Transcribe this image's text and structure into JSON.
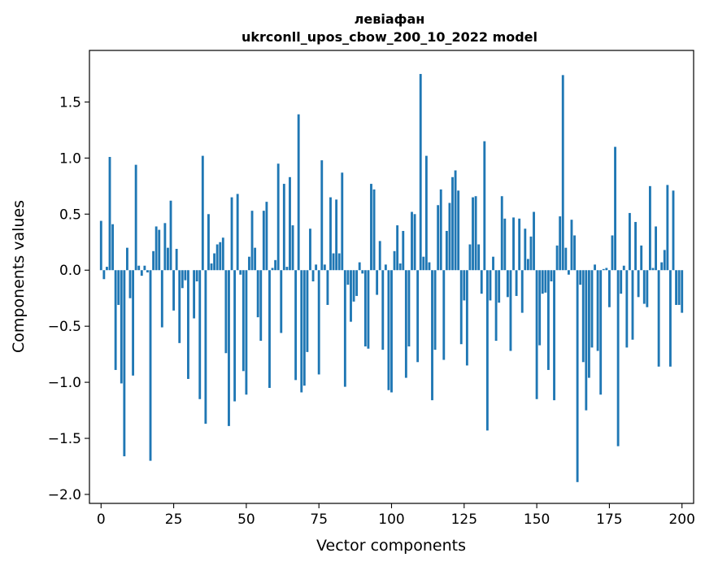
{
  "chart_data": {
    "type": "bar",
    "title_line1": "левіафан",
    "title_line2": "ukrconll_upos_cbow_200_10_2022 model",
    "xlabel": "Vector components",
    "ylabel": "Components values",
    "xlim": [
      -4,
      204
    ],
    "ylim": [
      -2.08,
      1.96
    ],
    "xticks": [
      0,
      25,
      50,
      75,
      100,
      125,
      150,
      175,
      200
    ],
    "xtick_labels": [
      "0",
      "25",
      "50",
      "75",
      "100",
      "125",
      "150",
      "175",
      "200"
    ],
    "yticks": [
      -2.0,
      -1.5,
      -1.0,
      -0.5,
      0.0,
      0.5,
      1.0,
      1.5
    ],
    "ytick_labels": [
      "−2.0",
      "−1.5",
      "−1.0",
      "−0.5",
      "0.0",
      "0.5",
      "1.0",
      "1.5"
    ],
    "bar_color": "#1f77b4",
    "values": [
      0.44,
      -0.08,
      0.03,
      1.01,
      0.41,
      -0.89,
      -0.31,
      -1.01,
      -1.66,
      0.2,
      -0.25,
      -0.94,
      0.94,
      0.04,
      -0.05,
      0.04,
      -0.02,
      -1.7,
      0.17,
      0.39,
      0.36,
      -0.51,
      0.42,
      0.2,
      0.62,
      -0.36,
      0.19,
      -0.65,
      -0.16,
      -0.09,
      -0.97,
      0.0,
      -0.43,
      -0.1,
      -1.15,
      1.02,
      -1.37,
      0.5,
      0.06,
      0.15,
      0.23,
      0.25,
      0.29,
      -0.74,
      -1.39,
      0.65,
      -1.17,
      0.68,
      -0.04,
      -0.9,
      -1.11,
      0.12,
      0.53,
      0.2,
      -0.42,
      -0.63,
      0.53,
      0.61,
      -1.05,
      0.02,
      0.09,
      0.95,
      -0.56,
      0.77,
      0.03,
      0.83,
      0.4,
      -0.98,
      1.39,
      -1.09,
      -1.03,
      -0.73,
      0.37,
      -0.1,
      0.05,
      -0.93,
      0.98,
      0.05,
      -0.31,
      0.65,
      0.15,
      0.63,
      0.15,
      0.87,
      -1.04,
      -0.13,
      -0.46,
      -0.28,
      -0.23,
      0.07,
      -0.03,
      -0.68,
      -0.7,
      0.77,
      0.72,
      -0.22,
      0.26,
      -0.71,
      0.05,
      -1.07,
      -1.09,
      0.17,
      0.4,
      0.06,
      0.35,
      -0.96,
      -0.68,
      0.52,
      0.5,
      -0.82,
      1.75,
      0.12,
      1.02,
      0.07,
      -1.16,
      -0.71,
      0.58,
      0.72,
      -0.8,
      0.35,
      0.6,
      0.83,
      0.89,
      0.71,
      -0.66,
      -0.27,
      -0.85,
      0.23,
      0.65,
      0.66,
      0.23,
      -0.21,
      1.15,
      -1.43,
      -0.27,
      0.12,
      -0.63,
      -0.29,
      0.66,
      0.46,
      -0.24,
      -0.72,
      0.47,
      -0.23,
      0.46,
      -0.38,
      0.37,
      0.1,
      0.3,
      0.52,
      -1.15,
      -0.67,
      -0.21,
      -0.2,
      -0.89,
      -0.1,
      -1.16,
      0.22,
      0.48,
      1.74,
      0.2,
      -0.04,
      0.45,
      0.31,
      -1.89,
      -0.13,
      -0.82,
      -1.25,
      -0.96,
      -0.69,
      0.05,
      -0.72,
      -1.11,
      0.01,
      0.02,
      -0.33,
      0.31,
      1.1,
      -1.57,
      -0.21,
      0.04,
      -0.69,
      0.51,
      -0.62,
      0.43,
      -0.24,
      0.22,
      -0.3,
      -0.33,
      0.75,
      0.02,
      0.39,
      -0.86,
      0.07,
      0.18,
      0.76,
      -0.86,
      0.71,
      -0.31,
      -0.31,
      -0.38
    ]
  }
}
